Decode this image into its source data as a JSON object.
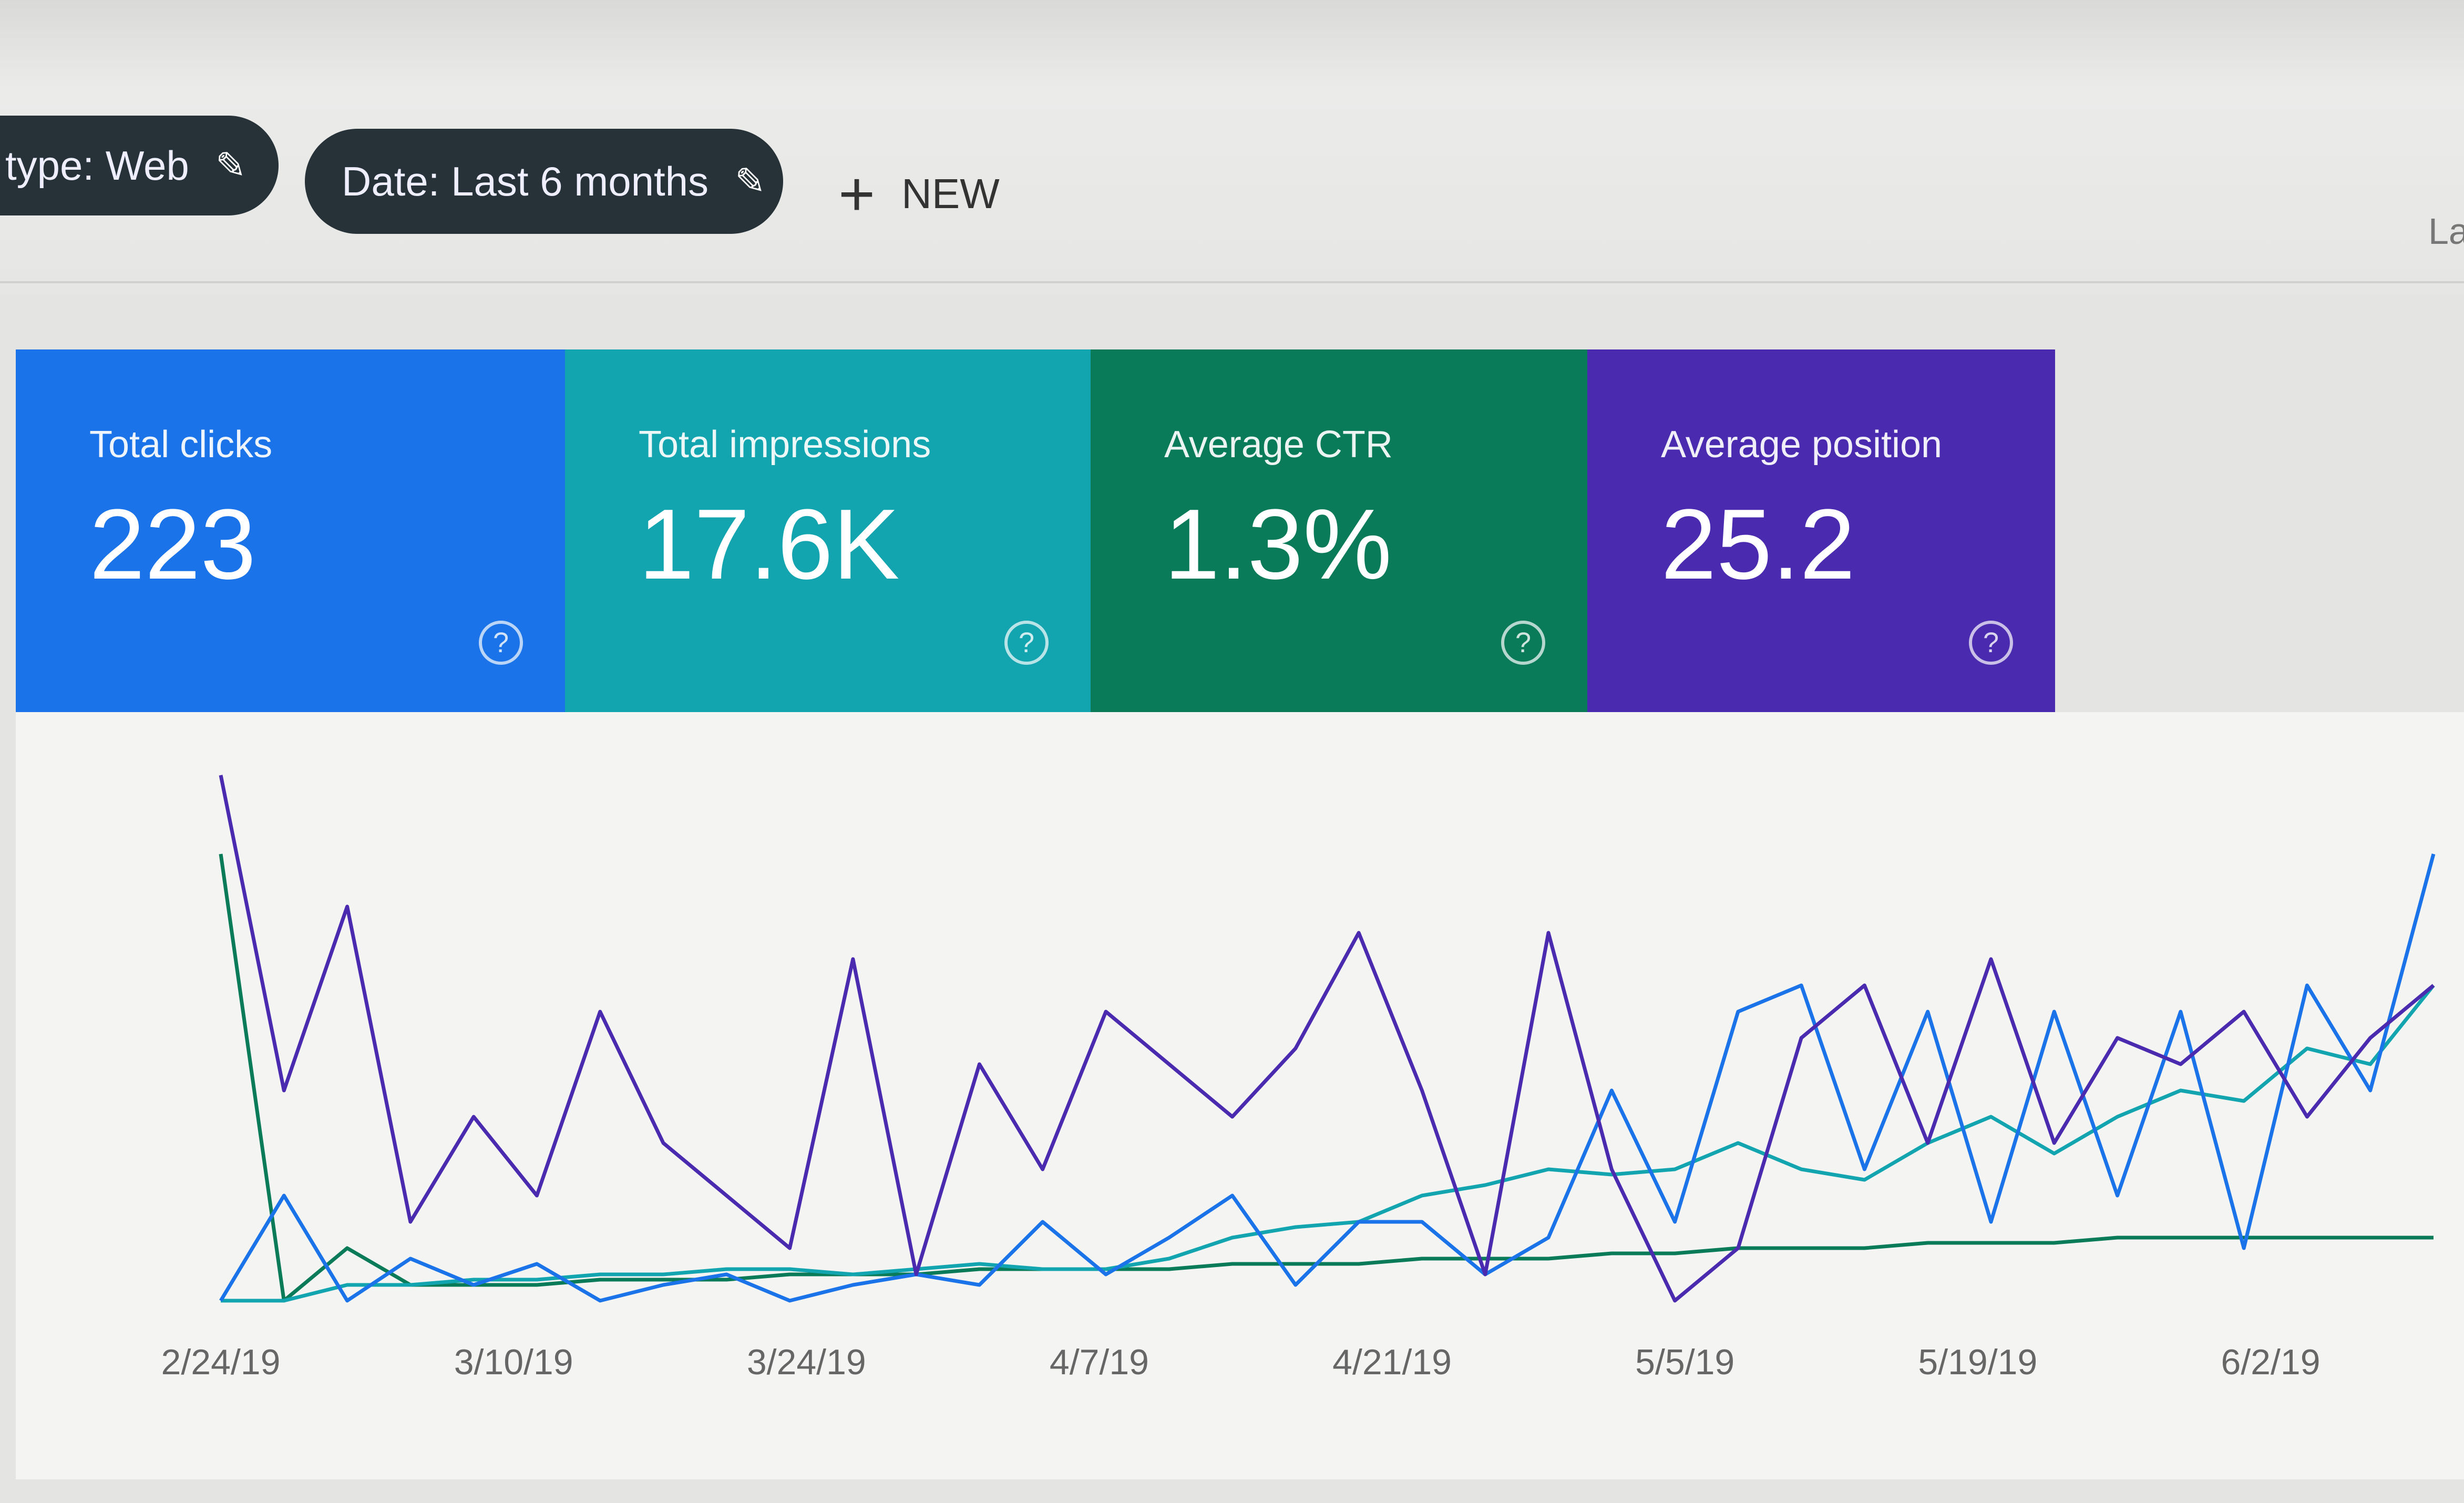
{
  "filters": {
    "type_chip": "type: Web",
    "date_chip": "Date: Last 6 months",
    "new_label": "NEW",
    "right_partial_label": "La"
  },
  "metrics": [
    {
      "label": "Total clicks",
      "value": "223",
      "color": "#1a73e8"
    },
    {
      "label": "Total impressions",
      "value": "17.6K",
      "color": "#12a5b0"
    },
    {
      "label": "Average CTR",
      "value": "1.3%",
      "color": "#0a7b58"
    },
    {
      "label": "Average position",
      "value": "25.2",
      "color": "#4a2bb0"
    }
  ],
  "icons": {
    "edit": "pencil-icon",
    "add": "plus-icon",
    "help": "help-circle-icon"
  },
  "chart_data": {
    "type": "line",
    "x_tick_labels": [
      "2/24/19",
      "3/10/19",
      "3/24/19",
      "4/7/19",
      "4/21/19",
      "5/5/19",
      "5/19/19",
      "6/2/19"
    ],
    "y_axis_visible": false,
    "grid": false,
    "ylim": [
      0,
      100
    ],
    "series": [
      {
        "color": "#4a2bb0",
        "values": [
          100,
          40,
          75,
          15,
          35,
          20,
          55,
          30,
          20,
          10,
          65,
          5,
          45,
          25,
          55,
          45,
          35,
          48,
          70,
          40,
          5,
          70,
          25,
          0,
          10,
          50,
          60,
          30,
          65,
          30,
          50,
          45,
          55,
          35,
          50,
          60
        ]
      },
      {
        "color": "#1a73e8",
        "values": [
          0,
          20,
          0,
          8,
          3,
          7,
          0,
          3,
          5,
          0,
          3,
          5,
          3,
          15,
          5,
          12,
          20,
          3,
          15,
          15,
          5,
          12,
          40,
          15,
          55,
          60,
          25,
          55,
          15,
          55,
          20,
          55,
          10,
          60,
          40,
          85
        ]
      },
      {
        "color": "#12a5b0",
        "values": [
          0,
          0,
          3,
          3,
          4,
          4,
          5,
          5,
          6,
          6,
          5,
          6,
          7,
          6,
          6,
          8,
          12,
          14,
          15,
          20,
          22,
          25,
          24,
          25,
          30,
          25,
          23,
          30,
          35,
          28,
          35,
          40,
          38,
          48,
          45,
          60
        ]
      },
      {
        "color": "#0a7b58",
        "values": [
          85,
          0,
          10,
          3,
          3,
          3,
          4,
          4,
          4,
          5,
          5,
          5,
          6,
          6,
          6,
          6,
          7,
          7,
          7,
          8,
          8,
          8,
          9,
          9,
          10,
          10,
          10,
          11,
          11,
          11,
          12,
          12,
          12,
          12,
          12,
          12
        ]
      }
    ]
  }
}
